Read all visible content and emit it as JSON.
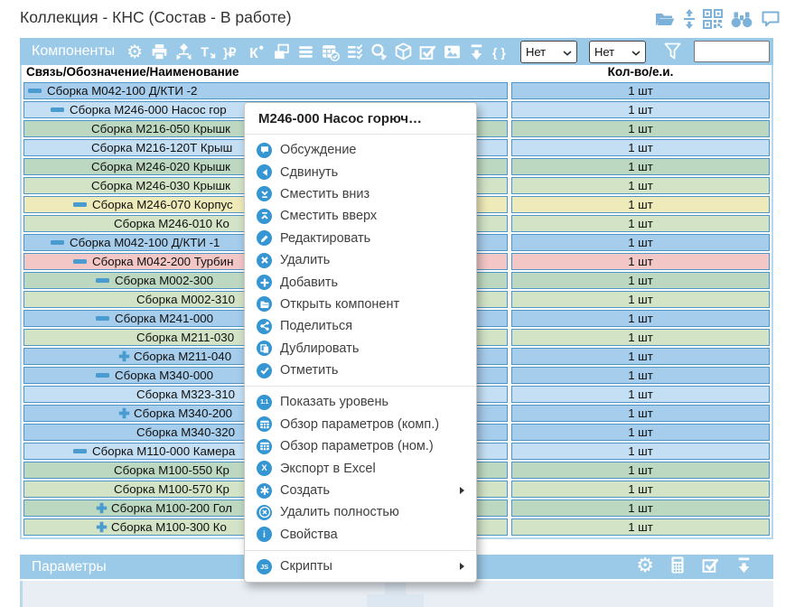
{
  "title": "Коллекция - КНС (Состав - В работе)",
  "window_icons": [
    "open-folder",
    "fit-vertical",
    "qr-code",
    "binoculars",
    "chat-bubble"
  ],
  "colors": {
    "accent_blue": "#9bcae9",
    "row_blue_light": "#c4dff4",
    "row_blue_medium": "#a6cdec",
    "row_green_dark": "#bdd8c1",
    "row_green_light": "#d3e3c6",
    "row_yellow": "#eeeab9",
    "row_pink": "#f3c7c6",
    "cell_border": "#4f96c6",
    "menu_icon_blue": "#3596d3"
  },
  "components": {
    "header": "Компоненты",
    "toolbar_icons": [
      "settings",
      "printer",
      "flow-arrows",
      "text-move",
      "price-ruble",
      "component-new",
      "cascade-windows",
      "list",
      "calendar-check",
      "checklist",
      "search-check",
      "package-box",
      "checkbox",
      "image",
      "download",
      "braces"
    ],
    "filter_dropdown_1": "Нет",
    "filter_dropdown_2": "Нет",
    "search_value": "",
    "columns": [
      "Связь/Обозначение/Наименование",
      "Кол-во/е.и."
    ],
    "rows": [
      {
        "label": "Сборка М042-100 Д/КТИ -2",
        "level": 0,
        "toggle": "minus",
        "color": "row_blue_medium",
        "qty": "1 шт"
      },
      {
        "label": "Сборка М246-000 Насос гор",
        "level": 1,
        "toggle": "minus",
        "color": "row_blue_light",
        "qty": "1 шт"
      },
      {
        "label": "Сборка М216-050 Крышк",
        "level": 2,
        "toggle": "none",
        "color": "row_green_dark",
        "qty": "1 шт"
      },
      {
        "label": "Сборка М216-120Т Крыш",
        "level": 2,
        "toggle": "none",
        "color": "row_blue_light",
        "qty": "1 шт"
      },
      {
        "label": "Сборка М246-020 Крышк",
        "level": 2,
        "toggle": "none",
        "color": "row_green_dark",
        "qty": "1 шт"
      },
      {
        "label": "Сборка М246-030 Крышк",
        "level": 2,
        "toggle": "none",
        "color": "row_green_light",
        "qty": "1 шт"
      },
      {
        "label": "Сборка М246-070 Корпус",
        "level": 2,
        "toggle": "minus",
        "color": "row_yellow",
        "qty": "1 шт"
      },
      {
        "label": "Сборка М246-010 Ко",
        "level": 3,
        "toggle": "none",
        "color": "row_green_light",
        "qty": "1 шт"
      },
      {
        "label": "Сборка М042-100 Д/КТИ -1",
        "level": 1,
        "toggle": "minus",
        "color": "row_blue_medium",
        "qty": "1 шт"
      },
      {
        "label": "Сборка М042-200 Турбин",
        "level": 2,
        "toggle": "minus",
        "color": "row_pink",
        "qty": "1 шт"
      },
      {
        "label": "Сборка М002-300",
        "level": 3,
        "toggle": "minus",
        "color": "row_green_dark",
        "qty": "1 шт"
      },
      {
        "label": "Сборка М002-310",
        "level": 4,
        "toggle": "none",
        "color": "row_green_light",
        "qty": "1 шт"
      },
      {
        "label": "Сборка М241-000",
        "level": 3,
        "toggle": "minus",
        "color": "row_blue_medium",
        "qty": "1 шт"
      },
      {
        "label": "Сборка М211-030",
        "level": 4,
        "toggle": "none",
        "color": "row_green_light",
        "qty": "1 шт"
      },
      {
        "label": "Сборка М211-040",
        "level": 4,
        "toggle": "plus",
        "color": "row_blue_medium",
        "qty": "1 шт"
      },
      {
        "label": "Сборка М340-000",
        "level": 3,
        "toggle": "minus",
        "color": "row_blue_medium",
        "qty": "1 шт"
      },
      {
        "label": "Сборка М323-310",
        "level": 4,
        "toggle": "none",
        "color": "row_blue_light",
        "qty": "1 шт"
      },
      {
        "label": "Сборка М340-200",
        "level": 4,
        "toggle": "plus",
        "color": "row_blue_medium",
        "qty": "1 шт"
      },
      {
        "label": "Сборка М340-320",
        "level": 4,
        "toggle": "none",
        "color": "row_blue_medium",
        "qty": "1 шт"
      },
      {
        "label": "Сборка М110-000 Камера",
        "level": 2,
        "toggle": "minus",
        "color": "row_blue_light",
        "qty": "1 шт"
      },
      {
        "label": "Сборка М100-550 Кр",
        "level": 3,
        "toggle": "none",
        "color": "row_green_dark",
        "qty": "1 шт"
      },
      {
        "label": "Сборка М100-570 Кр",
        "level": 3,
        "toggle": "none",
        "color": "row_green_light",
        "qty": "1 шт"
      },
      {
        "label": "Сборка М100-200 Гол",
        "level": 3,
        "toggle": "plus",
        "color": "row_green_dark",
        "qty": "1 шт"
      },
      {
        "label": "Сборка М100-300 Ко",
        "level": 3,
        "toggle": "plus",
        "color": "row_green_light",
        "qty": "1 шт"
      }
    ]
  },
  "context_menu": {
    "title": "М246-000 Насос горюч…",
    "groups": [
      [
        {
          "label": "Обсуждение",
          "icon": "chat"
        },
        {
          "label": "Сдвинуть",
          "icon": "move-left"
        },
        {
          "label": "Сместить вниз",
          "icon": "move-down"
        },
        {
          "label": "Сместить вверх",
          "icon": "move-up"
        },
        {
          "label": "Редактировать",
          "icon": "edit"
        },
        {
          "label": "Удалить",
          "icon": "delete"
        },
        {
          "label": "Добавить",
          "icon": "add"
        },
        {
          "label": "Открыть компонент",
          "icon": "open-folder"
        },
        {
          "label": "Поделиться",
          "icon": "share"
        },
        {
          "label": "Дублировать",
          "icon": "duplicate"
        },
        {
          "label": "Отметить",
          "icon": "mark"
        }
      ],
      [
        {
          "label": "Показать уровень",
          "icon": "level"
        },
        {
          "label": "Обзор параметров (комп.)",
          "icon": "table"
        },
        {
          "label": "Обзор параметров (ном.)",
          "icon": "table"
        },
        {
          "label": "Экспорт в Excel",
          "icon": "excel"
        },
        {
          "label": "Создать",
          "icon": "create",
          "submenu": true
        },
        {
          "label": "Удалить полностью",
          "icon": "delete-full"
        },
        {
          "label": "Свойства",
          "icon": "info"
        }
      ],
      [
        {
          "label": "Скрипты",
          "icon": "js",
          "submenu": true
        }
      ]
    ]
  },
  "parameters": {
    "header": "Параметры",
    "icons": [
      "settings",
      "calculator",
      "checkbox",
      "download"
    ]
  }
}
